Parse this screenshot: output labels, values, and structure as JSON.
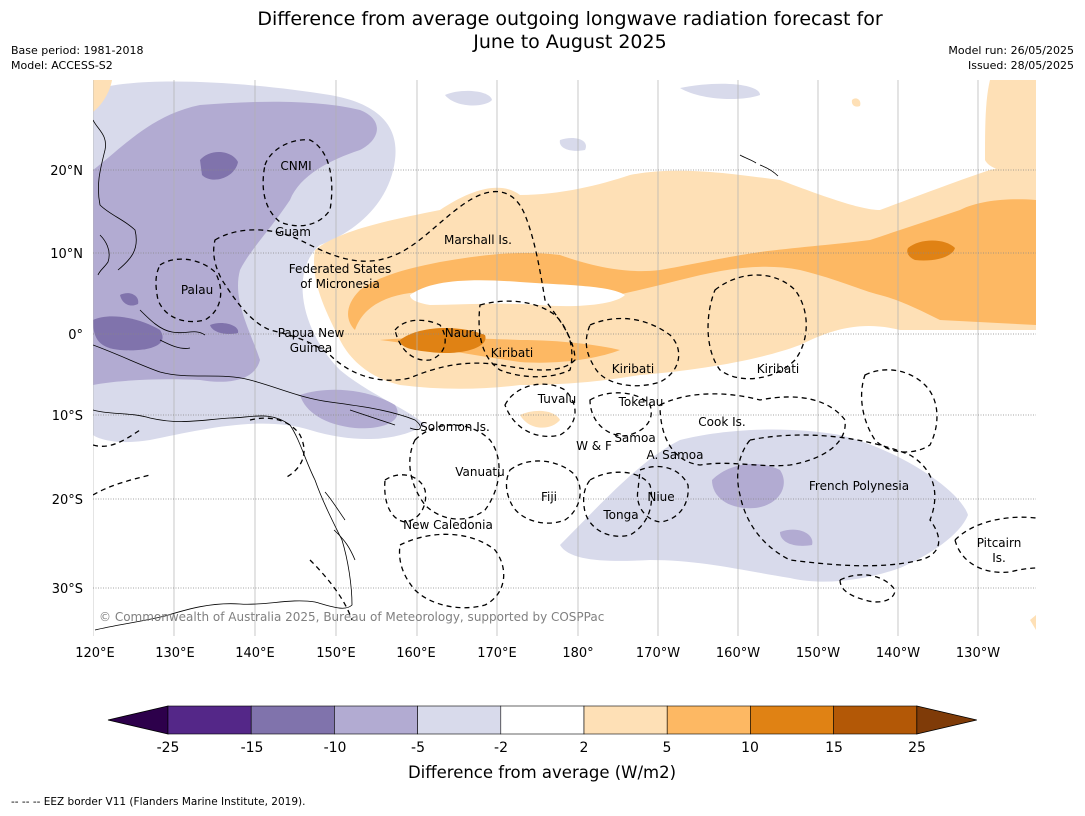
{
  "title_line1": "Difference from average outgoing longwave radiation forecast for",
  "title_line2": "June to August 2025",
  "meta": {
    "base_period": "Base period: 1981-2018",
    "model": "Model: ACCESS-S2",
    "model_run": "Model run: 26/05/2025",
    "issued": "Issued: 28/05/2025"
  },
  "map": {
    "lon_labels": [
      "120°E",
      "130°E",
      "140°E",
      "150°E",
      "160°E",
      "170°E",
      "180°",
      "170°W",
      "160°W",
      "150°W",
      "140°W",
      "130°W"
    ],
    "lat_labels": [
      "20°N",
      "10°N",
      "0°",
      "10°S",
      "20°S",
      "30°S"
    ],
    "copyright": "© Commonwealth of Australia 2025, Bureau of Meteorology, supported by COSPPac",
    "places": [
      {
        "name": "CNMI"
      },
      {
        "name": "Guam"
      },
      {
        "name": "Marshall Is."
      },
      {
        "name": "Federated States"
      },
      {
        "name": "of Micronesia"
      },
      {
        "name": "Palau"
      },
      {
        "name": "Papua New"
      },
      {
        "name": "Guinea"
      },
      {
        "name": "Nauru"
      },
      {
        "name": "Kiribati"
      },
      {
        "name": "Kiribati"
      },
      {
        "name": "Kiribati"
      },
      {
        "name": "Tuvalu"
      },
      {
        "name": "Tokelau"
      },
      {
        "name": "Cook Is."
      },
      {
        "name": "Solomon Is."
      },
      {
        "name": "Samoa"
      },
      {
        "name": "W & F"
      },
      {
        "name": "A. Samoa"
      },
      {
        "name": "Vanuatu"
      },
      {
        "name": "Fiji"
      },
      {
        "name": "Niue"
      },
      {
        "name": "Tonga"
      },
      {
        "name": "French Polynesia"
      },
      {
        "name": "New Caledonia"
      },
      {
        "name": "Pitcairn"
      },
      {
        "name": "Is."
      }
    ]
  },
  "colorbar": {
    "label": "Difference from average (W/m2)",
    "ticks": [
      "-25",
      "-15",
      "-10",
      "-5",
      "-2",
      "2",
      "5",
      "10",
      "15",
      "25"
    ],
    "colors": [
      "#2d004b",
      "#542788",
      "#8073ac",
      "#b2abd2",
      "#d8daeb",
      "#ffffff",
      "#fee0b6",
      "#fdb863",
      "#e08214",
      "#b35806",
      "#7f3b08"
    ]
  },
  "footnote": "--  --  -- EEZ border V11 (Flanders Marine Institute, 2019)."
}
